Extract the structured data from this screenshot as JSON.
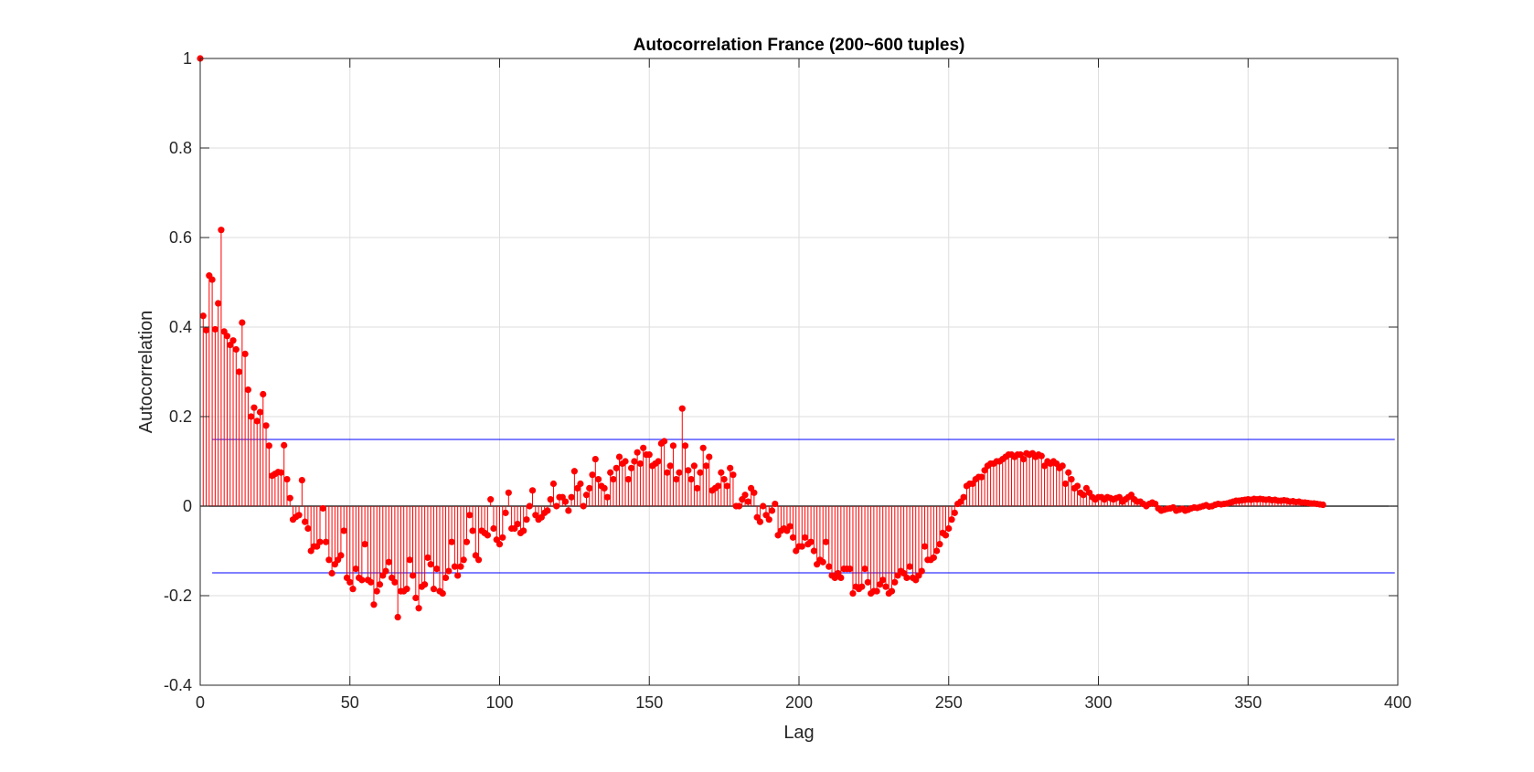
{
  "chart_data": {
    "type": "stem",
    "title": "Autocorrelation France (200~600 tuples)",
    "xlabel": "Lag",
    "ylabel": "Autocorrelation",
    "xlim": [
      0,
      400
    ],
    "ylim": [
      -0.4,
      1
    ],
    "xticks": [
      0,
      50,
      100,
      150,
      200,
      250,
      300,
      350,
      400
    ],
    "yticks": [
      -0.4,
      -0.2,
      0,
      0.2,
      0.4,
      0.6,
      0.8,
      1
    ],
    "ytick_labels": [
      "-0.4",
      "-0.2",
      "0",
      "0.2",
      "0.4",
      "0.6",
      "0.8",
      "1"
    ],
    "grid": true,
    "series": [
      {
        "color": "#ff0000",
        "x_start": 0,
        "x_step": 1,
        "values": [
          1.0,
          0.425,
          0.393,
          0.515,
          0.506,
          0.395,
          0.453,
          0.617,
          0.39,
          0.38,
          0.36,
          0.37,
          0.35,
          0.3,
          0.41,
          0.34,
          0.26,
          0.2,
          0.22,
          0.19,
          0.21,
          0.25,
          0.18,
          0.135,
          0.068,
          0.072,
          0.076,
          0.075,
          0.136,
          0.06,
          0.018,
          -0.03,
          -0.024,
          -0.02,
          0.058,
          -0.035,
          -0.05,
          -0.1,
          -0.09,
          -0.09,
          -0.08,
          -0.005,
          -0.08,
          -0.12,
          -0.15,
          -0.13,
          -0.12,
          -0.11,
          -0.055,
          -0.16,
          -0.17,
          -0.185,
          -0.14,
          -0.16,
          -0.165,
          -0.085,
          -0.165,
          -0.17,
          -0.22,
          -0.19,
          -0.175,
          -0.155,
          -0.145,
          -0.125,
          -0.16,
          -0.17,
          -0.248,
          -0.19,
          -0.19,
          -0.185,
          -0.12,
          -0.155,
          -0.205,
          -0.228,
          -0.18,
          -0.175,
          -0.115,
          -0.13,
          -0.185,
          -0.14,
          -0.19,
          -0.195,
          -0.16,
          -0.145,
          -0.08,
          -0.135,
          -0.155,
          -0.135,
          -0.12,
          -0.08,
          -0.02,
          -0.055,
          -0.11,
          -0.12,
          -0.055,
          -0.06,
          -0.065,
          0.015,
          -0.05,
          -0.075,
          -0.085,
          -0.07,
          -0.015,
          0.03,
          -0.05,
          -0.05,
          -0.04,
          -0.06,
          -0.055,
          -0.03,
          0.0,
          0.035,
          -0.02,
          -0.03,
          -0.025,
          -0.015,
          -0.01,
          0.015,
          0.05,
          0.0,
          0.02,
          0.02,
          0.01,
          -0.01,
          0.02,
          0.078,
          0.04,
          0.05,
          0.0,
          0.025,
          0.04,
          0.07,
          0.105,
          0.06,
          0.045,
          0.04,
          0.02,
          0.075,
          0.06,
          0.085,
          0.11,
          0.095,
          0.1,
          0.06,
          0.085,
          0.1,
          0.12,
          0.095,
          0.13,
          0.115,
          0.115,
          0.09,
          0.095,
          0.1,
          0.14,
          0.145,
          0.075,
          0.09,
          0.135,
          0.06,
          0.075,
          0.218,
          0.135,
          0.08,
          0.06,
          0.09,
          0.04,
          0.075,
          0.13,
          0.09,
          0.11,
          0.035,
          0.04,
          0.045,
          0.075,
          0.06,
          0.045,
          0.085,
          0.07,
          0.0,
          0.0,
          0.015,
          0.025,
          0.01,
          0.04,
          0.03,
          -0.025,
          -0.035,
          0.0,
          -0.02,
          -0.03,
          -0.01,
          0.005,
          -0.065,
          -0.055,
          -0.05,
          -0.055,
          -0.045,
          -0.07,
          -0.1,
          -0.09,
          -0.09,
          -0.07,
          -0.085,
          -0.08,
          -0.1,
          -0.13,
          -0.12,
          -0.125,
          -0.08,
          -0.135,
          -0.155,
          -0.16,
          -0.15,
          -0.16,
          -0.14,
          -0.14,
          -0.14,
          -0.195,
          -0.18,
          -0.185,
          -0.18,
          -0.14,
          -0.17,
          -0.195,
          -0.19,
          -0.19,
          -0.175,
          -0.165,
          -0.18,
          -0.195,
          -0.19,
          -0.17,
          -0.155,
          -0.145,
          -0.15,
          -0.16,
          -0.135,
          -0.16,
          -0.165,
          -0.155,
          -0.145,
          -0.09,
          -0.12,
          -0.12,
          -0.115,
          -0.1,
          -0.085,
          -0.06,
          -0.065,
          -0.05,
          -0.03,
          -0.015,
          0.005,
          0.01,
          0.02,
          0.045,
          0.05,
          0.05,
          0.06,
          0.065,
          0.065,
          0.08,
          0.09,
          0.095,
          0.095,
          0.1,
          0.1,
          0.105,
          0.11,
          0.115,
          0.115,
          0.11,
          0.115,
          0.115,
          0.105,
          0.118,
          0.115,
          0.118,
          0.11,
          0.115,
          0.112,
          0.09,
          0.1,
          0.095,
          0.1,
          0.095,
          0.085,
          0.09,
          0.05,
          0.075,
          0.06,
          0.04,
          0.045,
          0.03,
          0.025,
          0.04,
          0.03,
          0.02,
          0.015,
          0.02,
          0.02,
          0.015,
          0.02,
          0.018,
          0.015,
          0.018,
          0.02,
          0.01,
          0.015,
          0.02,
          0.025,
          0.015,
          0.01,
          0.01,
          0.005,
          0.0,
          0.005,
          0.008,
          0.005,
          -0.005,
          -0.01,
          -0.008,
          -0.006,
          -0.005,
          -0.003,
          -0.01,
          -0.008,
          -0.006,
          -0.01,
          -0.008,
          -0.005,
          -0.003,
          -0.004,
          -0.002,
          0.0,
          0.002,
          -0.001,
          0.0,
          0.003,
          0.005,
          0.004,
          0.005,
          0.006,
          0.008,
          0.01,
          0.012,
          0.012,
          0.013,
          0.014,
          0.015,
          0.014,
          0.016,
          0.015,
          0.016,
          0.015,
          0.014,
          0.015,
          0.013,
          0.014,
          0.012,
          0.012,
          0.013,
          0.012,
          0.01,
          0.011,
          0.009,
          0.01,
          0.008,
          0.008,
          0.007,
          0.006,
          0.006,
          0.005,
          0.004,
          0.003
        ]
      }
    ],
    "bounds": {
      "color": "#0000ff",
      "upper": 0.149,
      "lower": -0.149,
      "x_range": [
        4,
        399
      ]
    }
  }
}
